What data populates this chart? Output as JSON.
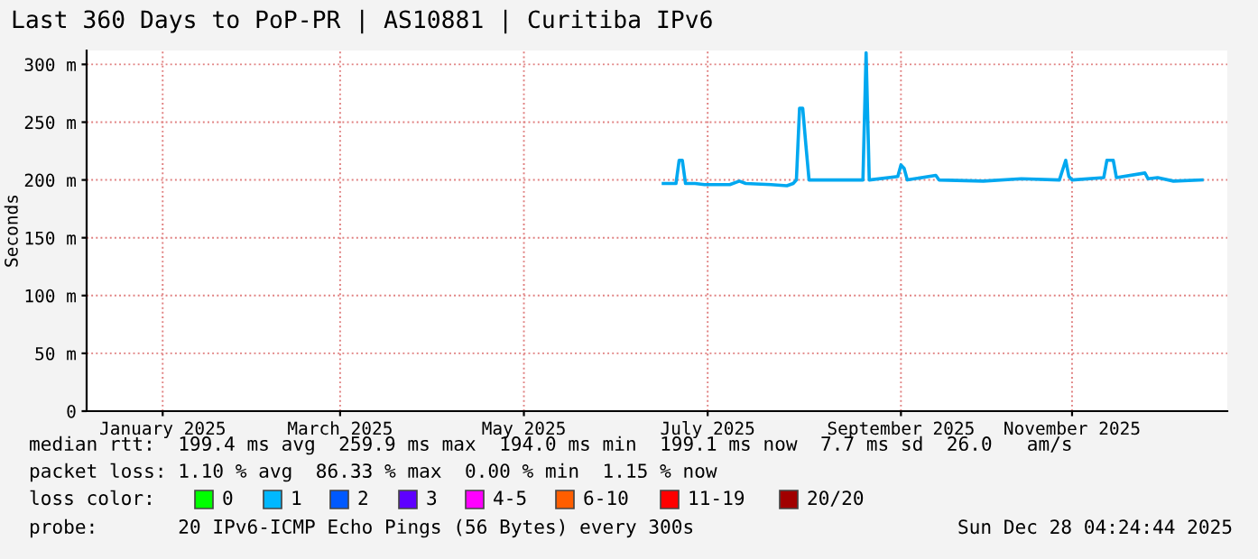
{
  "chart_data": {
    "type": "line",
    "title": "Last 360 Days to PoP-PR | AS10881 | Curitiba IPv6",
    "ylabel": "Seconds",
    "x": [
      "2025-07-03",
      "2025-07-07",
      "2025-07-08",
      "2025-07-09",
      "2025-07-10",
      "2025-07-13",
      "2025-07-16",
      "2025-07-20",
      "2025-07-24",
      "2025-07-27",
      "2025-07-29",
      "2025-08-06",
      "2025-08-11",
      "2025-08-13",
      "2025-08-14",
      "2025-08-15",
      "2025-08-16",
      "2025-08-17",
      "2025-08-18",
      "2025-08-30",
      "2025-09-04",
      "2025-09-05",
      "2025-09-06",
      "2025-09-15",
      "2025-09-16",
      "2025-09-17",
      "2025-09-18",
      "2025-09-27",
      "2025-09-28",
      "2025-10-12",
      "2025-10-24",
      "2025-11-05",
      "2025-11-07",
      "2025-11-08",
      "2025-11-09",
      "2025-11-19",
      "2025-11-20",
      "2025-11-22",
      "2025-11-23",
      "2025-12-02",
      "2025-12-03",
      "2025-12-06",
      "2025-12-11",
      "2025-12-20"
    ],
    "series": [
      {
        "color": "#00a8f0",
        "values": [
          197,
          197,
          217,
          217,
          197,
          197,
          196,
          196,
          196,
          199,
          197,
          196,
          195,
          197,
          200,
          262,
          262,
          230,
          200,
          200,
          200,
          310,
          200,
          203,
          213,
          210,
          200,
          204,
          200,
          199,
          201,
          200,
          217,
          203,
          200,
          202,
          217,
          217,
          202,
          206,
          201,
          202,
          199,
          200
        ]
      }
    ],
    "xlim": [
      "2025-01-02",
      "2025-12-28"
    ],
    "xticks": [
      {
        "value": "2025-01-26",
        "label": "January 2025"
      },
      {
        "value": "2025-03-23",
        "label": "March 2025"
      },
      {
        "value": "2025-05-20",
        "label": "May 2025"
      },
      {
        "value": "2025-07-17",
        "label": "July 2025"
      },
      {
        "value": "2025-09-16",
        "label": "September 2025"
      },
      {
        "value": "2025-11-09",
        "label": "November 2025"
      }
    ],
    "ylim": [
      0,
      312
    ],
    "yticks": [
      0,
      {
        "value": 50,
        "label": "50 m"
      },
      {
        "value": 100,
        "label": "100 m"
      },
      {
        "value": 150,
        "label": "150 m"
      },
      {
        "value": 200,
        "label": "200 m"
      },
      {
        "value": 250,
        "label": "250 m"
      },
      {
        "value": 300,
        "label": "300 m"
      }
    ],
    "grid": true,
    "annotations": [
      "median rtt:  199.4 ms avg  259.9 ms max  194.0 ms min  199.1 ms now  7.7 ms sd  26.0   am/s",
      "packet loss: 1.10 % avg  86.33 % max  0.00 % min  1.15 % now",
      "loss color:",
      "0",
      "1",
      "2",
      "3",
      "4-5",
      "6-10",
      "11-19",
      "20/20",
      "probe:       20 IPv6-ICMP Echo Pings (56 Bytes) every 300s",
      "Sun Dec 28 04:24:44 2025"
    ]
  }
}
